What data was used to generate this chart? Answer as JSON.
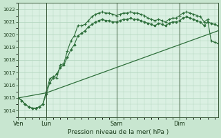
{
  "background_color": "#c8e6d0",
  "plot_bg_color": "#daf0e2",
  "grid_color": "#b0d4bc",
  "line_color": "#2d6e3a",
  "title": "Pression niveau de la mer( hPa )",
  "ylim": [
    1013.5,
    1022.5
  ],
  "yticks": [
    1014,
    1015,
    1016,
    1017,
    1018,
    1019,
    1020,
    1021,
    1022
  ],
  "day_labels": [
    "Ven",
    "Lun",
    "Sam",
    "Dim"
  ],
  "day_positions": [
    0,
    8,
    28,
    46
  ],
  "total_points": 58,
  "series_jagged": [
    1015.0,
    1014.8,
    1014.5,
    1014.3,
    1014.2,
    1014.2,
    1014.3,
    1014.5,
    1015.5,
    1016.5,
    1016.7,
    1016.6,
    1017.6,
    1017.7,
    1018.7,
    1019.5,
    1019.9,
    1020.7,
    1020.7,
    1020.8,
    1021.1,
    1021.4,
    1021.6,
    1021.7,
    1021.8,
    1021.7,
    1021.7,
    1021.6,
    1021.5,
    1021.6,
    1021.7,
    1021.7,
    1021.8,
    1021.7,
    1021.7,
    1021.6,
    1021.5,
    1021.3,
    1021.2,
    1021.1,
    1021.2,
    1021.1,
    1021.0,
    1021.2,
    1021.3,
    1021.3,
    1021.5,
    1021.7,
    1021.8,
    1021.7,
    1021.6,
    1021.5,
    1021.4,
    1021.0,
    1021.2,
    1019.5,
    1019.4,
    1019.3
  ],
  "series_smooth": [
    1015.0,
    1014.8,
    1014.5,
    1014.3,
    1014.2,
    1014.2,
    1014.3,
    1014.5,
    1015.3,
    1016.2,
    1016.6,
    1016.9,
    1017.4,
    1017.6,
    1018.2,
    1018.8,
    1019.2,
    1019.9,
    1020.1,
    1020.3,
    1020.6,
    1020.8,
    1021.0,
    1021.1,
    1021.2,
    1021.1,
    1021.1,
    1021.0,
    1021.0,
    1021.1,
    1021.2,
    1021.2,
    1021.3,
    1021.2,
    1021.2,
    1021.1,
    1021.0,
    1020.9,
    1020.8,
    1020.7,
    1020.9,
    1020.8,
    1020.7,
    1020.9,
    1021.0,
    1021.0,
    1021.1,
    1021.3,
    1021.4,
    1021.3,
    1021.2,
    1021.1,
    1021.0,
    1020.7,
    1021.0,
    1020.9,
    1020.8,
    1020.7
  ],
  "series_linear": [
    1015.0,
    1015.05,
    1015.1,
    1015.15,
    1015.2,
    1015.25,
    1015.3,
    1015.35,
    1015.4,
    1015.5,
    1015.6,
    1015.7,
    1015.8,
    1015.9,
    1016.0,
    1016.1,
    1016.2,
    1016.3,
    1016.4,
    1016.5,
    1016.6,
    1016.7,
    1016.8,
    1016.9,
    1017.0,
    1017.1,
    1017.2,
    1017.3,
    1017.4,
    1017.5,
    1017.6,
    1017.7,
    1017.8,
    1017.9,
    1018.0,
    1018.1,
    1018.2,
    1018.3,
    1018.4,
    1018.5,
    1018.6,
    1018.7,
    1018.8,
    1018.9,
    1019.0,
    1019.1,
    1019.2,
    1019.3,
    1019.4,
    1019.5,
    1019.6,
    1019.7,
    1019.8,
    1019.9,
    1020.0,
    1020.1,
    1020.2,
    1020.3
  ]
}
